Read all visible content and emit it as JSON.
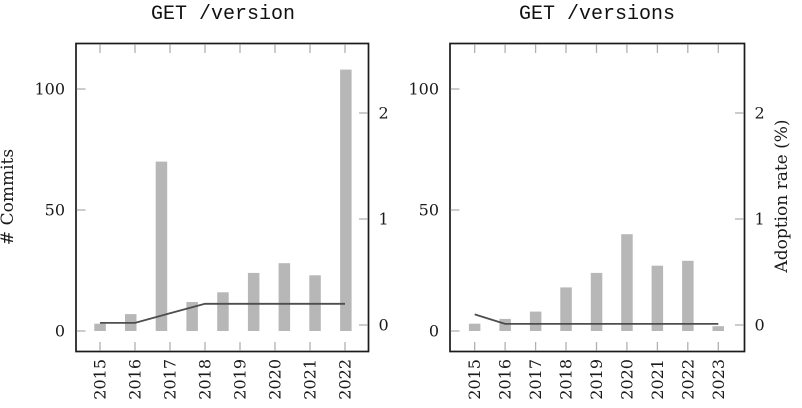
{
  "figure": {
    "background": "#ffffff",
    "bar_color": "#b7b7b7",
    "line_color": "#4e4e4e",
    "tick_color": "#b0b0b0",
    "border_color": "#1b1b1b"
  },
  "chart_data": [
    {
      "type": "bar",
      "title": "GET /version",
      "x_tick_labels": [
        "2015",
        "2016",
        "2017",
        "2018",
        "2019",
        "2020",
        "2021",
        "2022"
      ],
      "left_axis": {
        "label": "# Commits",
        "tick_labels": [
          "0",
          "50",
          "100"
        ],
        "tick_values": [
          0,
          50,
          100
        ],
        "range": [
          -10,
          118
        ]
      },
      "right_axis": {
        "label": "",
        "tick_labels": [
          "0",
          "1",
          "2"
        ],
        "tick_values": [
          0,
          1,
          2
        ],
        "range": [
          -0.25,
          2.65
        ]
      },
      "bars": {
        "series_name": "# Commits",
        "note": "9 bars evenly distributed across the 8 labeled year ticks",
        "values": [
          3,
          7,
          70,
          12,
          16,
          24,
          28,
          23,
          108
        ]
      },
      "line": {
        "series_name": "Adoption rate (%)",
        "axis": "right",
        "x": [
          "2015",
          "2016",
          "2017",
          "2018",
          "2019",
          "2020",
          "2021",
          "2022"
        ],
        "values": [
          0.02,
          0.02,
          0.11,
          0.2,
          0.2,
          0.2,
          0.2,
          0.2
        ]
      },
      "legend": "none",
      "grid": false
    },
    {
      "type": "bar",
      "title": "GET /versions",
      "x_tick_labels": [
        "2015",
        "2016",
        "2017",
        "2018",
        "2019",
        "2020",
        "2021",
        "2022",
        "2023"
      ],
      "left_axis": {
        "label": "",
        "tick_labels": [
          "0",
          "50",
          "100"
        ],
        "tick_values": [
          0,
          50,
          100
        ],
        "range": [
          -10,
          118
        ]
      },
      "right_axis": {
        "label": "Adoption rate (%)",
        "tick_labels": [
          "0",
          "1",
          "2"
        ],
        "tick_values": [
          0,
          1,
          2
        ],
        "range": [
          -0.25,
          2.65
        ]
      },
      "bars": {
        "series_name": "# Commits",
        "values": [
          3,
          5,
          8,
          18,
          24,
          40,
          27,
          29,
          2
        ]
      },
      "line": {
        "series_name": "Adoption rate (%)",
        "axis": "right",
        "x": [
          "2015",
          "2016",
          "2017",
          "2018",
          "2019",
          "2020",
          "2021",
          "2022",
          "2023"
        ],
        "values": [
          0.1,
          0.01,
          0.01,
          0.01,
          0.01,
          0.01,
          0.01,
          0.01,
          0.01
        ]
      },
      "legend": "none",
      "grid": false
    }
  ]
}
